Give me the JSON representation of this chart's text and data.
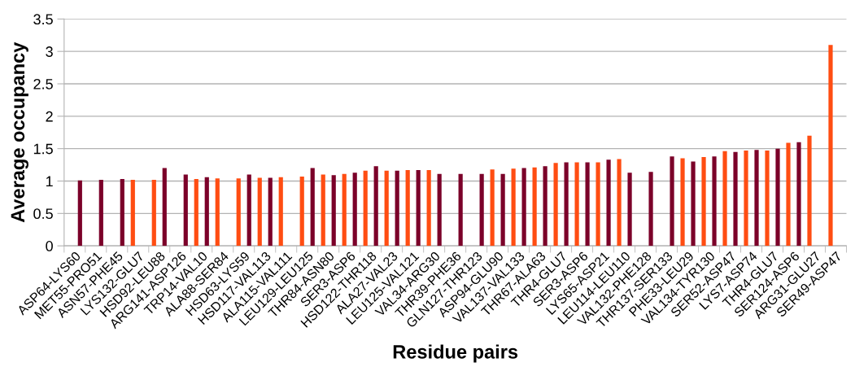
{
  "chart_data": {
    "type": "bar",
    "xlabel": "Residue pairs",
    "ylabel": "Average occupancy",
    "categories": [
      "ASP64-LYS60",
      "MET55-PRO51",
      "ASN57-PHE45",
      "LYS132-GLU7",
      "HSD92-LEU88",
      "ARG141-ASP126",
      "TRP14-VAL10",
      "ALA88-SER84",
      "HSD63-LYS59",
      "HSD117-VAL113",
      "ALA115-VAL111",
      "LEU129-LEU125",
      "THR84-ASN80",
      "SER3-ASP6",
      "HSD122-THR118",
      "ALA27-VAL23",
      "LEU125-VAL121",
      "VAL34-ARG30",
      "THR39-PHE36",
      "GLN127-THR123",
      "ASP94-GLU90",
      "VAL137-VAL133",
      "THR67-ALA63",
      "THR4-GLU7",
      "SER3-ASP6",
      "LYS65-ASP21",
      "LEU114-LEU110",
      "VAL132-PHE128",
      "THR137-SER133",
      "PHE33-LEU29",
      "VAL134-TYR130",
      "SER52-ASP47",
      "LYS7-ASP74",
      "THR4-GLU7",
      "SER124-ASP6",
      "ARG31-GLU27",
      "SER49-ASP47"
    ],
    "series": [
      {
        "color": "#ff4d12",
        "values": [
          null,
          null,
          null,
          1.02,
          1.02,
          null,
          1.03,
          1.04,
          1.04,
          1.05,
          1.06,
          1.07,
          1.1,
          1.11,
          1.16,
          1.16,
          1.17,
          1.17,
          null,
          null,
          1.18,
          1.19,
          1.21,
          1.28,
          1.29,
          1.29,
          1.34,
          null,
          null,
          1.35,
          1.37,
          1.46,
          1.47,
          1.47,
          1.59,
          1.7,
          3.1
        ]
      },
      {
        "color": "#7b0029",
        "values": [
          1.01,
          1.02,
          1.03,
          null,
          1.2,
          1.1,
          1.06,
          null,
          1.1,
          1.05,
          null,
          1.2,
          1.09,
          1.13,
          1.23,
          1.16,
          1.17,
          1.11,
          1.11,
          1.11,
          1.11,
          1.2,
          1.23,
          1.29,
          1.29,
          1.33,
          1.13,
          1.14,
          1.38,
          1.3,
          1.38,
          1.45,
          1.48,
          1.5,
          1.6,
          null,
          null
        ]
      }
    ],
    "ylim": [
      0,
      3.5
    ],
    "yticks": [
      0,
      0.5,
      1,
      1.5,
      2,
      2.5,
      3,
      3.5
    ],
    "grid": "y",
    "legend": false
  }
}
